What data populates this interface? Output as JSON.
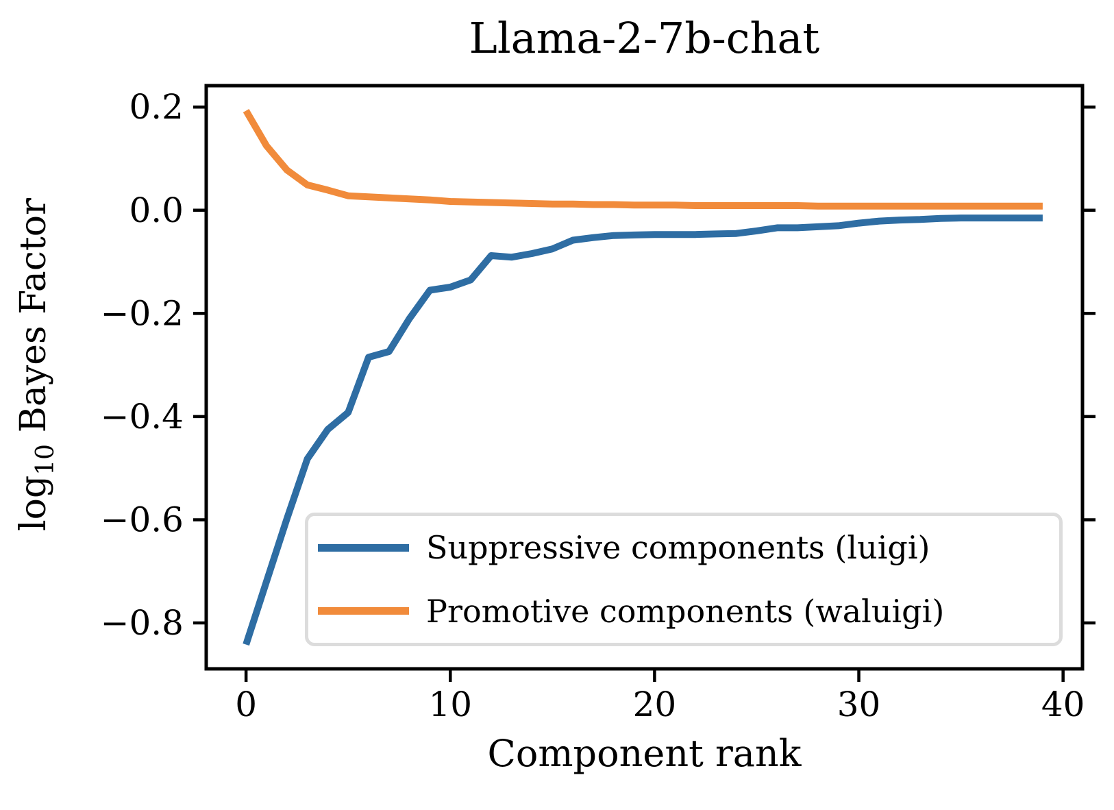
{
  "figure": {
    "title": "Llama-2-7b-chat"
  },
  "axes": {
    "xlabel": "Component rank",
    "ylabel_prefix": "log",
    "ylabel_sub": "10",
    "ylabel_rest": " Bayes Factor",
    "x_tick_labels": [
      "0",
      "10",
      "20",
      "30",
      "40"
    ],
    "y_tick_labels": [
      "0.2",
      "0.0",
      "−0.2",
      "−0.4",
      "−0.6",
      "−0.8"
    ]
  },
  "legend": {
    "items": [
      {
        "label": "Suppressive components (luigi)",
        "color": "#2E6DA3"
      },
      {
        "label": "Promotive components (waluigi)",
        "color": "#F18B3B"
      }
    ]
  },
  "chart_data": {
    "type": "line",
    "title": "Llama-2-7b-chat",
    "xlabel": "Component rank",
    "ylabel": "log10 Bayes Factor",
    "grid": false,
    "legend_position": "lower right",
    "xlim": [
      -1.95,
      40.95
    ],
    "ylim": [
      -0.889,
      0.2415
    ],
    "x_tick_values": [
      0,
      10,
      20,
      30,
      40
    ],
    "y_tick_values": [
      0.2,
      0.0,
      -0.2,
      -0.4,
      -0.6,
      -0.8
    ],
    "x": [
      0,
      1,
      2,
      3,
      4,
      5,
      6,
      7,
      8,
      9,
      10,
      11,
      12,
      13,
      14,
      15,
      16,
      17,
      18,
      19,
      20,
      21,
      22,
      23,
      24,
      25,
      26,
      27,
      28,
      29,
      30,
      31,
      32,
      33,
      34,
      35,
      36,
      37,
      38,
      39
    ],
    "series": [
      {
        "name": "Suppressive components (luigi)",
        "color": "#2E6DA3",
        "values": [
          -0.842,
          -0.72,
          -0.598,
          -0.482,
          -0.425,
          -0.392,
          -0.285,
          -0.274,
          -0.21,
          -0.155,
          -0.149,
          -0.135,
          -0.088,
          -0.091,
          -0.084,
          -0.075,
          -0.058,
          -0.053,
          -0.049,
          -0.048,
          -0.047,
          -0.047,
          -0.047,
          -0.046,
          -0.045,
          -0.04,
          -0.034,
          -0.034,
          -0.032,
          -0.03,
          -0.025,
          -0.021,
          -0.019,
          -0.018,
          -0.016,
          -0.015,
          -0.015,
          -0.015,
          -0.015,
          -0.015
        ]
      },
      {
        "name": "Promotive components (waluigi)",
        "color": "#F18B3B",
        "values": [
          0.193,
          0.125,
          0.078,
          0.049,
          0.039,
          0.028,
          0.026,
          0.024,
          0.022,
          0.02,
          0.017,
          0.016,
          0.015,
          0.014,
          0.013,
          0.012,
          0.012,
          0.011,
          0.011,
          0.01,
          0.01,
          0.01,
          0.009,
          0.009,
          0.009,
          0.009,
          0.009,
          0.009,
          0.008,
          0.008,
          0.008,
          0.008,
          0.008,
          0.008,
          0.008,
          0.008,
          0.008,
          0.008,
          0.008,
          0.008
        ]
      }
    ]
  }
}
